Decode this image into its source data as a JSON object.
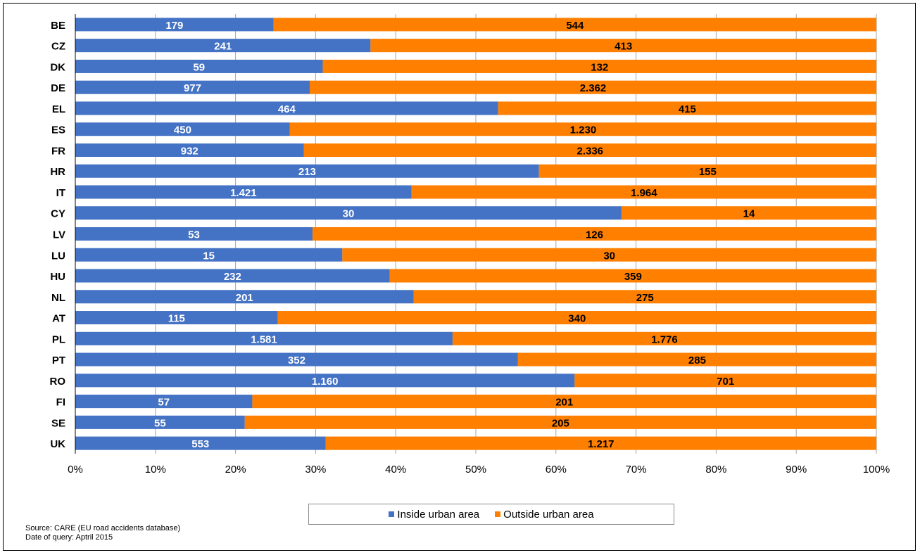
{
  "chart_data": {
    "type": "bar",
    "orientation": "horizontal",
    "stacked": "percent",
    "categories": [
      "BE",
      "CZ",
      "DK",
      "DE",
      "EL",
      "ES",
      "FR",
      "HR",
      "IT",
      "CY",
      "LV",
      "LU",
      "HU",
      "NL",
      "AT",
      "PL",
      "PT",
      "RO",
      "FI",
      "SE",
      "UK"
    ],
    "series": [
      {
        "name": "Inside urban area",
        "color": "#4472C4",
        "values": [
          179,
          241,
          59,
          977,
          464,
          450,
          932,
          213,
          1421,
          30,
          53,
          15,
          232,
          201,
          115,
          1581,
          352,
          1160,
          57,
          55,
          553
        ],
        "labels": [
          "179",
          "241",
          "59",
          "977",
          "464",
          "450",
          "932",
          "213",
          "1.421",
          "30",
          "53",
          "15",
          "232",
          "201",
          "115",
          "1.581",
          "352",
          "1.160",
          "57",
          "55",
          "553"
        ]
      },
      {
        "name": "Outside urban area",
        "color": "#FF7F00",
        "values": [
          544,
          413,
          132,
          2362,
          415,
          1230,
          2336,
          155,
          1964,
          14,
          126,
          30,
          359,
          275,
          340,
          1776,
          285,
          701,
          201,
          205,
          1217
        ],
        "labels": [
          "544",
          "413",
          "132",
          "2.362",
          "415",
          "1.230",
          "2.336",
          "155",
          "1.964",
          "14",
          "126",
          "30",
          "359",
          "275",
          "340",
          "1.776",
          "285",
          "701",
          "201",
          "205",
          "1.217"
        ]
      }
    ],
    "xlim": [
      0,
      100
    ],
    "xticks": [
      "0%",
      "10%",
      "20%",
      "30%",
      "40%",
      "50%",
      "60%",
      "70%",
      "80%",
      "90%",
      "100%"
    ],
    "grid": true,
    "legend": "bottom"
  },
  "source": {
    "line1": "Source: CARE (EU road  accidents database)",
    "line2": "Date of query: Aptril 2015"
  }
}
